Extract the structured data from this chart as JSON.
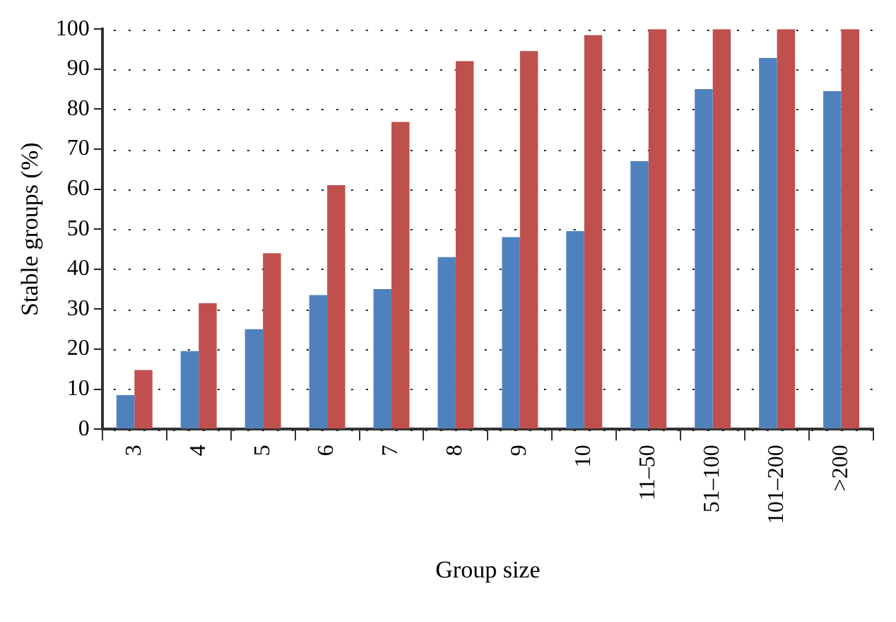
{
  "chart_data": {
    "type": "bar",
    "xlabel": "Group size",
    "ylabel": "Stable groups (%)",
    "categories": [
      "3",
      "4",
      "5",
      "6",
      "7",
      "8",
      "9",
      "10",
      "11–50",
      "51–100",
      "101–200",
      ">200"
    ],
    "series": [
      {
        "color": "#4f81bd",
        "values": [
          8.5,
          19.5,
          25,
          33.5,
          35,
          43,
          48,
          49.5,
          67,
          85,
          92.8,
          84.5
        ]
      },
      {
        "color": "#c0504d",
        "values": [
          14.8,
          31.5,
          44,
          61,
          76.8,
          92,
          94.5,
          98.5,
          100,
          100,
          100,
          100
        ]
      }
    ],
    "ylim": [
      0,
      100
    ],
    "yticks": [
      0,
      10,
      20,
      30,
      40,
      50,
      60,
      70,
      80,
      90,
      100
    ],
    "grid": "y",
    "legend": false
  }
}
